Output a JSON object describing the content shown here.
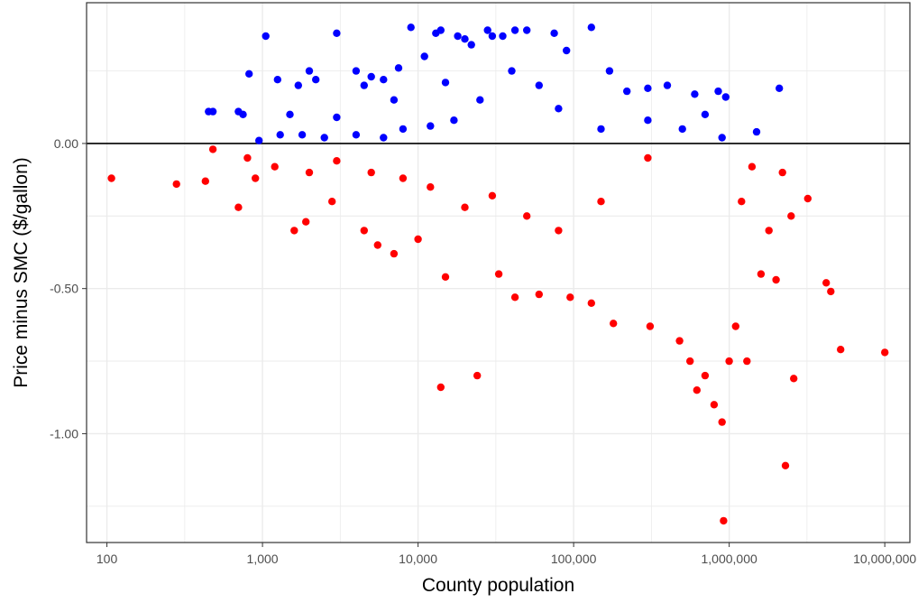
{
  "chart_data": {
    "type": "scatter",
    "title": "",
    "xlabel": "County population",
    "ylabel": "Price minus SMC ($/gallon)",
    "x_scale": "log10",
    "xlim": [
      74,
      14500000
    ],
    "ylim": [
      -1.375,
      0.485
    ],
    "x_ticks": [
      {
        "value": 100,
        "label": "100"
      },
      {
        "value": 1000,
        "label": "1,000"
      },
      {
        "value": 10000,
        "label": "10,000"
      },
      {
        "value": 100000,
        "label": "100,000"
      },
      {
        "value": 1000000,
        "label": "1,000,000"
      },
      {
        "value": 10000000,
        "label": "10,000,000"
      }
    ],
    "y_ticks": [
      {
        "value": 0,
        "label": "0.00"
      },
      {
        "value": -0.5,
        "label": "-0.50"
      },
      {
        "value": -1,
        "label": "-1.00"
      }
    ],
    "reference_line_y": 0,
    "grid": true,
    "legend": "none",
    "colors": {
      "positive": "#0000ff",
      "negative": "#ff0000",
      "reference_line": "#000000",
      "grid": "#ebebeb",
      "panel_border": "#333333"
    },
    "series": [
      {
        "color": "#0000ff",
        "points": [
          [
            450,
            0.11
          ],
          [
            480,
            0.11
          ],
          [
            700,
            0.11
          ],
          [
            750,
            0.1
          ],
          [
            820,
            0.24
          ],
          [
            1050,
            0.37
          ],
          [
            1250,
            0.22
          ],
          [
            1500,
            0.1
          ],
          [
            1700,
            0.2
          ],
          [
            2000,
            0.25
          ],
          [
            2200,
            0.22
          ],
          [
            3000,
            0.38
          ],
          [
            4000,
            0.25
          ],
          [
            4500,
            0.2
          ],
          [
            5000,
            0.23
          ],
          [
            6000,
            0.22
          ],
          [
            7000,
            0.15
          ],
          [
            7500,
            0.26
          ],
          [
            9000,
            0.4
          ],
          [
            11000,
            0.3
          ],
          [
            13000,
            0.38
          ],
          [
            14000,
            0.39
          ],
          [
            15000,
            0.21
          ],
          [
            18000,
            0.37
          ],
          [
            20000,
            0.36
          ],
          [
            22000,
            0.34
          ],
          [
            28000,
            0.39
          ],
          [
            30000,
            0.37
          ],
          [
            35000,
            0.37
          ],
          [
            42000,
            0.39
          ],
          [
            50000,
            0.39
          ],
          [
            75000,
            0.38
          ],
          [
            90000,
            0.32
          ],
          [
            130000,
            0.4
          ],
          [
            170000,
            0.25
          ],
          [
            220000,
            0.18
          ],
          [
            300000,
            0.19
          ],
          [
            400000,
            0.2
          ],
          [
            600000,
            0.17
          ],
          [
            700000,
            0.1
          ],
          [
            850000,
            0.18
          ],
          [
            950000,
            0.16
          ],
          [
            2100000,
            0.19
          ],
          [
            1500000,
            0.04
          ],
          [
            900000,
            0.02
          ],
          [
            500000,
            0.05
          ],
          [
            300000,
            0.08
          ],
          [
            150000,
            0.05
          ],
          [
            80000,
            0.12
          ],
          [
            60000,
            0.2
          ],
          [
            40000,
            0.25
          ],
          [
            25000,
            0.15
          ],
          [
            17000,
            0.08
          ],
          [
            12000,
            0.06
          ],
          [
            8000,
            0.05
          ],
          [
            6000,
            0.02
          ],
          [
            4000,
            0.03
          ],
          [
            3000,
            0.09
          ],
          [
            2500,
            0.02
          ],
          [
            1800,
            0.03
          ],
          [
            1300,
            0.03
          ],
          [
            950,
            0.01
          ]
        ]
      },
      {
        "color": "#ff0000",
        "points": [
          [
            107,
            -0.12
          ],
          [
            280,
            -0.14
          ],
          [
            430,
            -0.13
          ],
          [
            480,
            -0.02
          ],
          [
            700,
            -0.22
          ],
          [
            900,
            -0.12
          ],
          [
            1600,
            -0.3
          ],
          [
            1900,
            -0.27
          ],
          [
            2800,
            -0.2
          ],
          [
            4500,
            -0.3
          ],
          [
            5500,
            -0.35
          ],
          [
            7000,
            -0.38
          ],
          [
            10000,
            -0.33
          ],
          [
            14000,
            -0.84
          ],
          [
            15000,
            -0.46
          ],
          [
            24000,
            -0.8
          ],
          [
            33000,
            -0.45
          ],
          [
            42000,
            -0.53
          ],
          [
            60000,
            -0.52
          ],
          [
            95000,
            -0.53
          ],
          [
            130000,
            -0.55
          ],
          [
            180000,
            -0.62
          ],
          [
            310000,
            -0.63
          ],
          [
            480000,
            -0.68
          ],
          [
            560000,
            -0.75
          ],
          [
            620000,
            -0.85
          ],
          [
            700000,
            -0.8
          ],
          [
            800000,
            -0.9
          ],
          [
            900000,
            -0.96
          ],
          [
            920000,
            -1.3
          ],
          [
            1000000,
            -0.75
          ],
          [
            1100000,
            -0.63
          ],
          [
            1300000,
            -0.75
          ],
          [
            1600000,
            -0.45
          ],
          [
            2000000,
            -0.47
          ],
          [
            2300000,
            -1.11
          ],
          [
            2600000,
            -0.81
          ],
          [
            3200000,
            -0.19
          ],
          [
            4200000,
            -0.48
          ],
          [
            4500000,
            -0.51
          ],
          [
            5200000,
            -0.71
          ],
          [
            10000000,
            -0.72
          ],
          [
            2500000,
            -0.25
          ],
          [
            2200000,
            -0.1
          ],
          [
            1800000,
            -0.3
          ],
          [
            1400000,
            -0.08
          ],
          [
            1200000,
            -0.2
          ],
          [
            300000,
            -0.05
          ],
          [
            150000,
            -0.2
          ],
          [
            80000,
            -0.3
          ],
          [
            50000,
            -0.25
          ],
          [
            30000,
            -0.18
          ],
          [
            20000,
            -0.22
          ],
          [
            12000,
            -0.15
          ],
          [
            8000,
            -0.12
          ],
          [
            5000,
            -0.1
          ],
          [
            3000,
            -0.06
          ],
          [
            2000,
            -0.1
          ],
          [
            1200,
            -0.08
          ],
          [
            800,
            -0.05
          ]
        ]
      }
    ]
  }
}
